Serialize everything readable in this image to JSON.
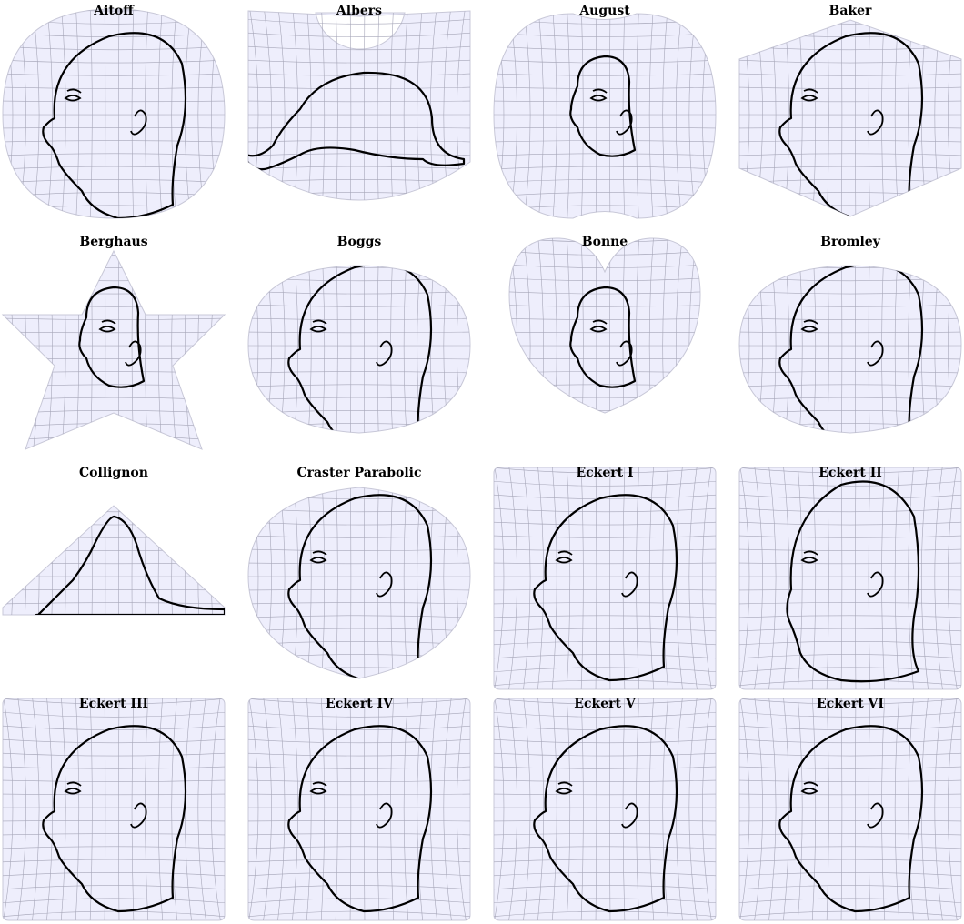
{
  "gallery": {
    "projections": [
      {
        "name": "Aitoff",
        "shape": "ellipse",
        "face": "profile"
      },
      {
        "name": "Albers",
        "shape": "cone",
        "face": "tilted"
      },
      {
        "name": "August",
        "shape": "august",
        "face": "small"
      },
      {
        "name": "Baker",
        "shape": "octagon",
        "face": "profile"
      },
      {
        "name": "Berghaus",
        "shape": "star",
        "face": "small"
      },
      {
        "name": "Boggs",
        "shape": "oval",
        "face": "profile"
      },
      {
        "name": "Bonne",
        "shape": "heart",
        "face": "small"
      },
      {
        "name": "Bromley",
        "shape": "oval",
        "face": "profile"
      },
      {
        "name": "Collignon",
        "shape": "triangle",
        "face": "flat"
      },
      {
        "name": "Craster Parabolic",
        "shape": "parabolic",
        "face": "profile"
      },
      {
        "name": "Eckert I",
        "shape": "rect",
        "face": "profile"
      },
      {
        "name": "Eckert II",
        "shape": "rect",
        "face": "tall"
      },
      {
        "name": "Eckert III",
        "shape": "rect",
        "face": "profile"
      },
      {
        "name": "Eckert IV",
        "shape": "rect",
        "face": "profile"
      },
      {
        "name": "Eckert V",
        "shape": "rect",
        "face": "profile"
      },
      {
        "name": "Eckert VI",
        "shape": "rect",
        "face": "profile"
      }
    ]
  },
  "colors": {
    "fill": "#eeeefc",
    "grid": "#a6a6b8",
    "outline": "#c8c8d8",
    "ink": "#000000"
  },
  "icons": {
    "drawing": "head-profile-drawing"
  }
}
